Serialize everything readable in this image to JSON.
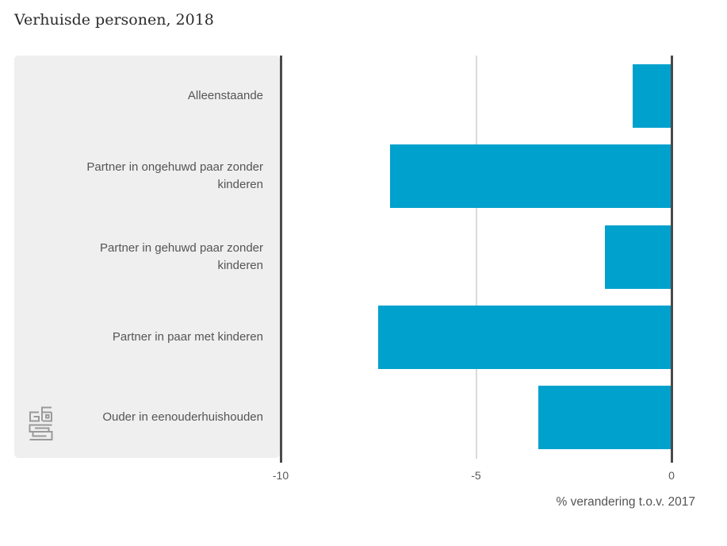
{
  "title": "Verhuisde personen, 2018",
  "chart_data": {
    "type": "bar",
    "orientation": "horizontal",
    "categories": [
      "Alleenstaande",
      "Partner in ongehuwd paar zonder kinderen",
      "Partner in gehuwd paar zonder kinderen",
      "Partner in paar met kinderen",
      "Ouder in eenouderhuishouden"
    ],
    "values": [
      -1.0,
      -7.2,
      -1.7,
      -7.5,
      -3.4
    ],
    "xlabel": "% verandering t.o.v. 2017",
    "x_ticks": [
      -10,
      -5,
      0
    ],
    "xlim": [
      -10,
      0
    ],
    "grid": "vertical gridlines at interior ticks, dark axis lines at -10 and 0",
    "legend": "none",
    "bar_color": "#00a1cd"
  },
  "colors": {
    "bar": "#00a1cd",
    "panel_background": "#efefef",
    "axis_line": "#4a4a4a",
    "gridline": "#dadada",
    "title_text": "#2b2b2b",
    "label_text": "#555555",
    "logo": "#9a9a9a"
  },
  "logo": {
    "name": "cbs-logo"
  }
}
